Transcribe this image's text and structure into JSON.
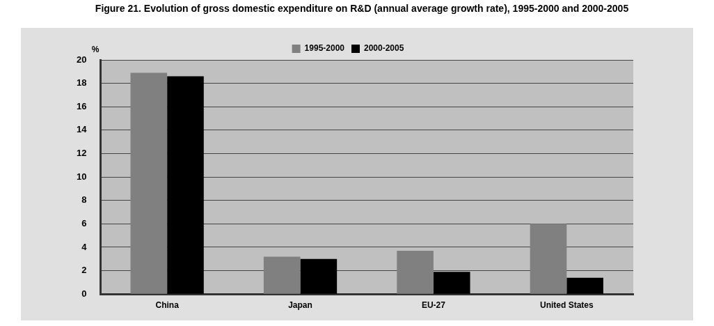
{
  "chart_data": {
    "type": "bar",
    "title": "Figure 21.      Evolution of gross domestic expenditure on R&D (annual average growth rate), 1995-2000 and 2000-2005",
    "ylabel": "%",
    "categories": [
      "China",
      "Japan",
      "EU-27",
      "United States"
    ],
    "series": [
      {
        "name": "1995-2000",
        "color": "#808080",
        "values": [
          18.9,
          3.2,
          3.7,
          6.0
        ]
      },
      {
        "name": "2000-2005",
        "color": "#000000",
        "values": [
          18.6,
          3.0,
          1.9,
          1.4
        ]
      }
    ],
    "ylim": [
      0,
      20
    ],
    "yticks": [
      0,
      2,
      4,
      6,
      8,
      10,
      12,
      14,
      16,
      18,
      20
    ],
    "grid": "y",
    "legend": "top"
  }
}
